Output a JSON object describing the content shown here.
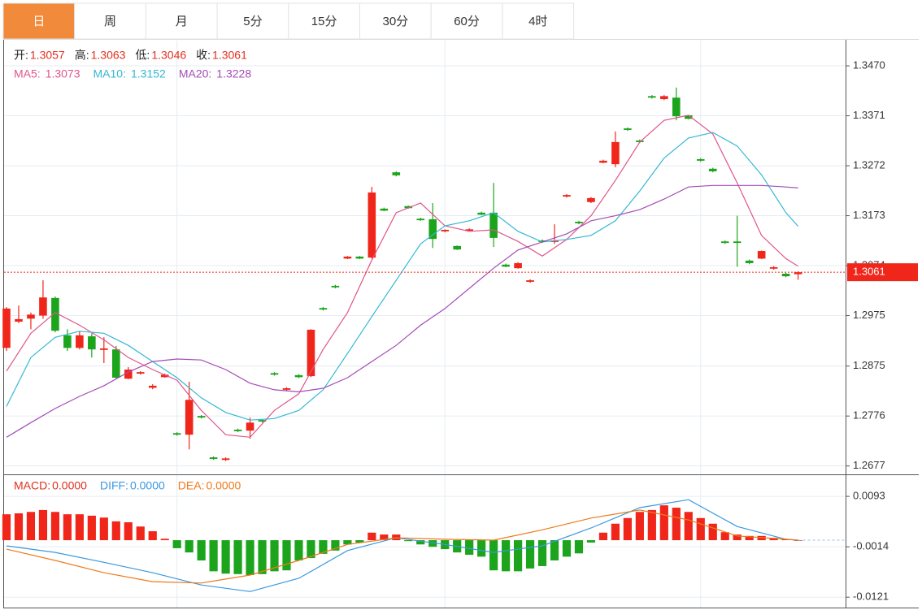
{
  "tabs": [
    "日",
    "周",
    "月",
    "5分",
    "15分",
    "30分",
    "60分",
    "4时"
  ],
  "active_tab": 0,
  "chart_data": [
    {
      "type": "candlestick",
      "ohlc_labels": [
        "开:",
        "高:",
        "低:",
        "收:"
      ],
      "xlim": [
        -0.2,
        68.9
      ],
      "xgrid": [
        14,
        36,
        57
      ],
      "ylim": [
        1.2662,
        1.352
      ],
      "yticks": [
        {
          "value": 1.347,
          "label": "1.3470"
        },
        1.3371,
        1.3272,
        1.3173,
        1.3074,
        1.2975,
        1.2875,
        1.2776,
        1.2677
      ],
      "grid": true,
      "up_color": "#f0261b",
      "down_color": "#1ca51c",
      "label_color": "#e0301e",
      "last_price": 1.3061,
      "candles": {
        "open": [
          1.2911,
          1.2963,
          1.2969,
          1.2975,
          1.301,
          1.2936,
          1.2911,
          1.2934,
          1.2907,
          1.2908,
          1.285,
          1.286,
          1.2832,
          1.2853,
          1.2742,
          1.2739,
          1.2776,
          1.2694,
          1.2689,
          1.2749,
          1.2747,
          1.2768,
          1.2861,
          1.2828,
          1.2857,
          1.2855,
          1.299,
          1.3034,
          1.3088,
          1.3092,
          1.309,
          1.3187,
          1.3259,
          1.3192,
          1.3167,
          1.3166,
          1.3142,
          1.3113,
          1.3143,
          1.3179,
          1.3179,
          1.3076,
          1.3069,
          1.3042,
          1.3124,
          1.3121,
          1.3211,
          1.3161,
          1.32,
          1.3278,
          1.3275,
          1.3346,
          1.3322,
          1.341,
          1.3404,
          1.3407,
          1.3372,
          1.3285,
          1.3266,
          1.3122,
          1.3122,
          1.3084,
          1.3088,
          1.3068,
          1.3058,
          1.3057
        ],
        "high": [
          1.2992,
          1.2995,
          1.2981,
          1.3045,
          1.3013,
          1.2948,
          1.2944,
          1.294,
          1.2932,
          1.2915,
          1.2873,
          1.2865,
          1.2839,
          1.286,
          1.2744,
          1.2844,
          1.2778,
          1.2696,
          1.2694,
          1.2751,
          1.2773,
          1.277,
          1.2863,
          1.2833,
          1.2859,
          1.2948,
          1.2992,
          1.3036,
          1.3093,
          1.3093,
          1.323,
          1.3189,
          1.3261,
          1.3193,
          1.3169,
          1.3198,
          1.3146,
          1.3114,
          1.3148,
          1.3181,
          1.3238,
          1.3078,
          1.3081,
          1.3047,
          1.3126,
          1.3156,
          1.3216,
          1.3163,
          1.321,
          1.3284,
          1.334,
          1.3348,
          1.3324,
          1.3412,
          1.3412,
          1.3427,
          1.3373,
          1.3287,
          1.3268,
          1.3124,
          1.3173,
          1.3086,
          1.3104,
          1.3073,
          1.306,
          1.3063
        ],
        "low": [
          1.2905,
          1.296,
          1.2948,
          1.2969,
          1.2942,
          1.2905,
          1.2908,
          1.2892,
          1.2881,
          1.2849,
          1.2849,
          1.2858,
          1.2829,
          1.2852,
          1.2737,
          1.271,
          1.2771,
          1.2689,
          1.2687,
          1.2744,
          1.2731,
          1.2763,
          1.2856,
          1.2826,
          1.2851,
          1.2853,
          1.2985,
          1.3029,
          1.3087,
          1.3087,
          1.3088,
          1.3182,
          1.3251,
          1.3187,
          1.3163,
          1.3109,
          1.314,
          1.3105,
          1.3142,
          1.3174,
          1.3111,
          1.3071,
          1.3068,
          1.304,
          1.3119,
          1.3117,
          1.3209,
          1.3156,
          1.3198,
          1.3277,
          1.3269,
          1.3341,
          1.3317,
          1.3405,
          1.3402,
          1.3362,
          1.3364,
          1.328,
          1.3259,
          1.3117,
          1.3072,
          1.3077,
          1.3087,
          1.3066,
          1.3051,
          1.3046
        ],
        "close": [
          1.2989,
          1.2968,
          1.2977,
          1.3011,
          1.2945,
          1.2911,
          1.2936,
          1.2908,
          1.291,
          1.2852,
          1.2868,
          1.2863,
          1.2836,
          1.2858,
          1.2739,
          1.2808,
          1.2773,
          1.2691,
          1.2692,
          1.2746,
          1.2763,
          1.2765,
          1.2858,
          1.2831,
          1.2853,
          1.2947,
          1.2987,
          1.3031,
          1.3092,
          1.3088,
          1.3219,
          1.3183,
          1.3253,
          1.3188,
          1.3164,
          1.3127,
          1.3145,
          1.3106,
          1.3146,
          1.3175,
          1.3129,
          1.3072,
          1.3079,
          1.3045,
          1.3121,
          1.3124,
          1.3214,
          1.3158,
          1.3208,
          1.3282,
          1.3319,
          1.3343,
          1.3319,
          1.3407,
          1.341,
          1.337,
          1.3365,
          1.3282,
          1.3261,
          1.3119,
          1.3119,
          1.3079,
          1.3103,
          1.3071,
          1.3053,
          1.3061
        ]
      },
      "series": [
        {
          "name": "MA5:",
          "color": "#e0558a",
          "x": [
            0,
            2,
            4,
            6,
            8,
            10,
            12,
            14,
            16,
            18,
            20,
            22,
            24,
            26,
            28,
            30,
            32,
            34,
            36,
            38,
            40,
            42,
            44,
            46,
            48,
            50,
            52,
            54,
            56,
            58,
            60,
            62,
            64,
            65
          ],
          "values": [
            1.2865,
            1.294,
            1.2981,
            1.2956,
            1.2927,
            1.2892,
            1.2868,
            1.2847,
            1.2787,
            1.2739,
            1.2734,
            1.2787,
            1.282,
            1.2908,
            1.2981,
            1.3085,
            1.3179,
            1.3198,
            1.3153,
            1.3142,
            1.3145,
            1.3122,
            1.3093,
            1.3126,
            1.3173,
            1.3243,
            1.3319,
            1.3362,
            1.3372,
            1.3335,
            1.3238,
            1.3134,
            1.3088,
            1.3073
          ]
        },
        {
          "name": "MA10:",
          "color": "#33b8d3",
          "x": [
            0,
            2,
            4,
            6,
            8,
            10,
            12,
            14,
            16,
            18,
            20,
            22,
            24,
            26,
            28,
            30,
            32,
            34,
            36,
            38,
            40,
            42,
            44,
            46,
            48,
            50,
            52,
            54,
            56,
            58,
            60,
            62,
            64,
            65
          ],
          "values": [
            1.2795,
            1.2892,
            1.2932,
            1.2944,
            1.294,
            1.2916,
            1.2884,
            1.2852,
            1.2812,
            1.2783,
            1.2768,
            1.2771,
            1.2787,
            1.2828,
            1.29,
            1.2973,
            1.3045,
            1.3117,
            1.3153,
            1.3163,
            1.3179,
            1.3142,
            1.3121,
            1.3126,
            1.3134,
            1.3163,
            1.3222,
            1.3287,
            1.3327,
            1.3338,
            1.3311,
            1.3254,
            1.3179,
            1.3152
          ]
        },
        {
          "name": "MA20:",
          "color": "#a44bb6",
          "x": [
            0,
            2,
            4,
            6,
            8,
            10,
            12,
            14,
            16,
            18,
            20,
            22,
            24,
            26,
            28,
            30,
            32,
            34,
            36,
            38,
            40,
            42,
            44,
            46,
            48,
            50,
            52,
            54,
            56,
            58,
            60,
            62,
            64,
            65
          ],
          "values": [
            1.2734,
            1.2763,
            1.2791,
            1.2815,
            1.2836,
            1.2863,
            1.2884,
            1.2889,
            1.2887,
            1.2868,
            1.2841,
            1.2828,
            1.2824,
            1.2831,
            1.2852,
            1.2884,
            1.2916,
            1.2956,
            1.2989,
            1.3029,
            1.3069,
            1.3105,
            1.3121,
            1.3137,
            1.3163,
            1.3173,
            1.3185,
            1.3206,
            1.323,
            1.3233,
            1.3233,
            1.3233,
            1.323,
            1.3228
          ]
        }
      ]
    },
    {
      "type": "macd",
      "xlim": [
        -0.2,
        68.9
      ],
      "xgrid": [
        14,
        36,
        57
      ],
      "ylim": [
        -0.0143,
        0.0138
      ],
      "yticks": [
        0.0093,
        -0.0014,
        -0.0121
      ],
      "grid": true,
      "histogram": {
        "name": "MACD:",
        "value_label": "0.0000",
        "color": "#e0301e",
        "up_color": "#f0261b",
        "down_color": "#1ca51c",
        "values": [
          0.0055,
          0.0057,
          0.006,
          0.0064,
          0.006,
          0.0055,
          0.0055,
          0.0052,
          0.0048,
          0.004,
          0.0038,
          0.0029,
          0.0019,
          0.0003,
          -0.0017,
          -0.0026,
          -0.0043,
          -0.0066,
          -0.0071,
          -0.0072,
          -0.0074,
          -0.0072,
          -0.0066,
          -0.0064,
          -0.0043,
          -0.0038,
          -0.0029,
          -0.0022,
          -0.0009,
          -0.0005,
          0.0016,
          0.0012,
          0.0012,
          -0.0002,
          -0.0009,
          -0.0014,
          -0.0019,
          -0.0026,
          -0.0031,
          -0.0035,
          -0.0064,
          -0.0066,
          -0.0066,
          -0.006,
          -0.0055,
          -0.0043,
          -0.0035,
          -0.0028,
          -0.0005,
          0.0016,
          0.0035,
          0.0047,
          0.006,
          0.0064,
          0.0074,
          0.0069,
          0.006,
          0.0047,
          0.0035,
          0.0017,
          0.0012,
          0.0009,
          0.0009,
          0.0005,
          0.0002,
          0
        ]
      },
      "series": [
        {
          "name": "DIFF:",
          "value_label": "0.0000",
          "color": "#3a98e0",
          "x": [
            0,
            4,
            8,
            12,
            16,
            20,
            24,
            28,
            32,
            36,
            40,
            44,
            48,
            52,
            56,
            60,
            64,
            65
          ],
          "values": [
            -0.0012,
            -0.0026,
            -0.0047,
            -0.0069,
            -0.0095,
            -0.0109,
            -0.0081,
            -0.0022,
            0.0005,
            -0.0009,
            -0.0026,
            -0.0012,
            0.0026,
            0.0069,
            0.0086,
            0.0029,
            0.0002,
            0
          ]
        },
        {
          "name": "DEA:",
          "value_label": "0.0000",
          "color": "#ee7a1a",
          "x": [
            0,
            4,
            8,
            12,
            16,
            20,
            24,
            28,
            32,
            36,
            40,
            44,
            48,
            52,
            56,
            60,
            64,
            65
          ],
          "values": [
            -0.0019,
            -0.0043,
            -0.0069,
            -0.0088,
            -0.0091,
            -0.0074,
            -0.0043,
            -0.0009,
            0.0005,
            0.0002,
            0,
            0.0022,
            0.0047,
            0.0064,
            0.0043,
            0.0009,
            0.0002,
            0
          ]
        }
      ]
    }
  ]
}
